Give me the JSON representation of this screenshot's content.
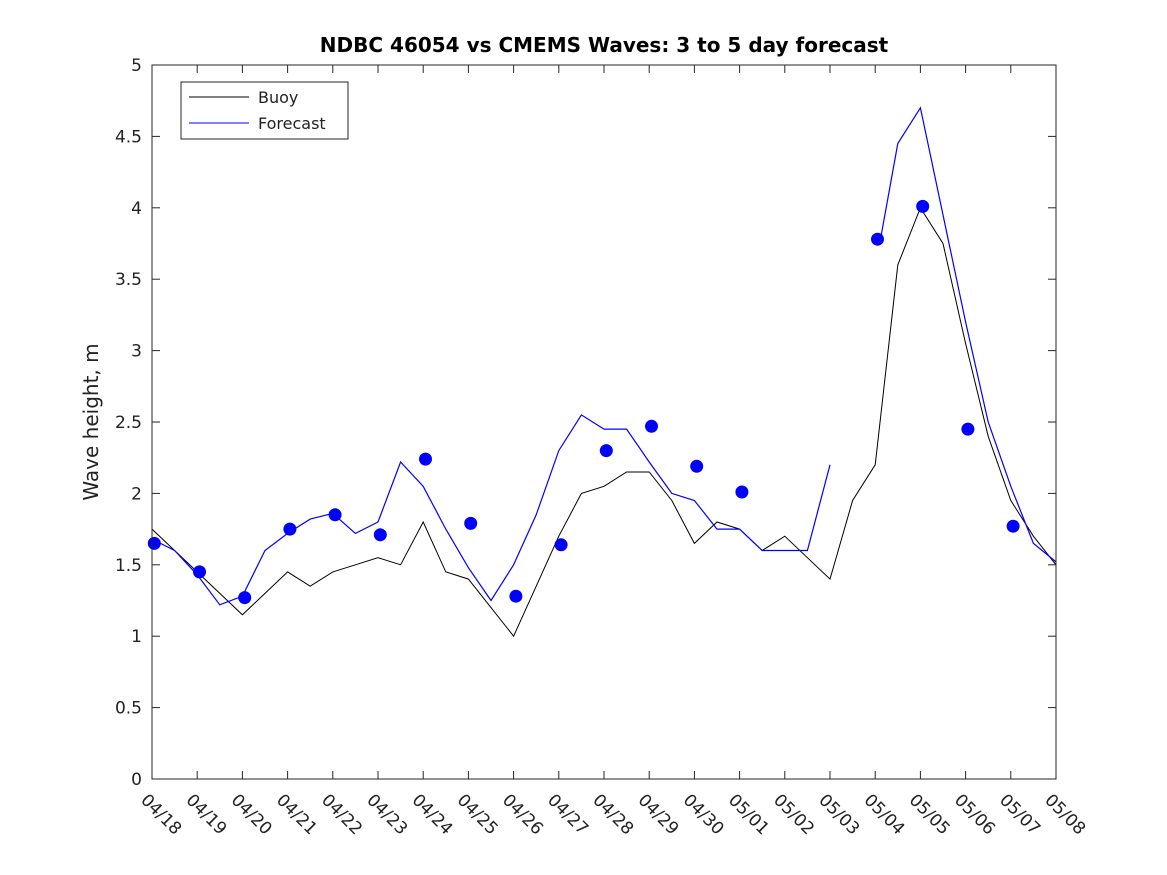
{
  "chart_data": {
    "type": "line",
    "title": "NDBC 46054 vs CMEMS Waves: 3 to 5 day forecast",
    "xlabel": "",
    "ylabel": "Wave height, m",
    "xlim": [
      "04/18",
      "05/08"
    ],
    "ylim": [
      0,
      5
    ],
    "x_tick_labels": [
      "04/18",
      "04/19",
      "04/20",
      "04/21",
      "04/22",
      "04/23",
      "04/24",
      "04/25",
      "04/26",
      "04/27",
      "04/28",
      "04/29",
      "04/30",
      "05/01",
      "05/02",
      "05/03",
      "05/04",
      "05/05",
      "05/06",
      "05/07",
      "05/08"
    ],
    "y_ticks": [
      0,
      0.5,
      1,
      1.5,
      2,
      2.5,
      3,
      3.5,
      4,
      4.5,
      5
    ],
    "y_tick_labels": [
      "0",
      "0.5",
      "1",
      "1.5",
      "2",
      "2.5",
      "3",
      "3.5",
      "4",
      "4.5",
      "5"
    ],
    "grid": false,
    "legend": {
      "placement": "top-left",
      "entries": [
        "Buoy",
        "Forecast"
      ]
    },
    "colors": {
      "buoy": "#000000",
      "forecast": "#0000ff"
    },
    "series": [
      {
        "name": "Buoy",
        "x": [
          0.0,
          0.5,
          1.0,
          1.5,
          2.0,
          2.5,
          3.0,
          3.5,
          4.0,
          4.5,
          5.0,
          5.5,
          6.0,
          6.5,
          7.0,
          7.5,
          8.0,
          8.5,
          9.0,
          9.5,
          10.0,
          10.5,
          11.0,
          11.5,
          12.0,
          12.5,
          13.0,
          13.5,
          14.0,
          14.5,
          15.0,
          15.5,
          16.0,
          16.5,
          17.0,
          17.5,
          18.0,
          18.5,
          19.0,
          19.5,
          20.0
        ],
        "y": [
          1.75,
          1.6,
          1.45,
          1.3,
          1.15,
          1.3,
          1.45,
          1.35,
          1.45,
          1.5,
          1.55,
          1.5,
          1.8,
          1.45,
          1.4,
          1.2,
          1.0,
          1.35,
          1.7,
          2.0,
          2.05,
          2.15,
          2.15,
          1.95,
          1.65,
          1.8,
          1.75,
          1.6,
          1.7,
          1.55,
          1.4,
          1.95,
          2.2,
          3.6,
          4.0,
          3.75,
          3.05,
          2.4,
          1.95,
          1.7,
          1.5
        ]
      },
      {
        "name": "",
        "x": [
          0.0,
          0.5,
          1.0,
          1.5,
          2.0,
          2.5,
          3.0,
          3.5,
          4.0,
          4.5,
          5.0,
          5.5,
          6.0,
          6.5,
          7.0,
          7.5,
          8.0,
          8.5,
          9.0,
          9.5,
          10.0,
          10.5,
          11.0,
          11.5,
          12.0,
          12.5,
          13.0,
          13.5,
          14.0,
          14.5,
          15.0
        ],
        "y": [
          1.68,
          1.6,
          1.43,
          1.22,
          1.28,
          1.6,
          1.72,
          1.82,
          1.86,
          1.72,
          1.8,
          2.22,
          2.05,
          1.75,
          1.48,
          1.25,
          1.5,
          1.85,
          2.3,
          2.55,
          2.45,
          2.45,
          2.22,
          2.0,
          1.95,
          1.75,
          1.75,
          1.6,
          1.6,
          1.6,
          2.2
        ]
      },
      {
        "name": "Forecast",
        "x": [
          16.1,
          16.5,
          17.0,
          17.5,
          18.0,
          18.5,
          19.0,
          19.5,
          20.0
        ],
        "y": [
          3.75,
          4.45,
          4.7,
          3.95,
          3.2,
          2.5,
          2.05,
          1.65,
          1.52
        ]
      },
      {
        "name": "",
        "x": [
          0.05,
          1.05,
          2.05,
          3.05,
          4.05,
          5.05,
          6.05,
          7.05,
          8.05,
          9.05,
          10.05,
          11.05,
          12.05,
          13.05,
          16.05,
          17.05,
          18.05,
          19.05
        ],
        "y": [
          1.65,
          1.45,
          1.27,
          1.75,
          1.85,
          1.71,
          2.24,
          1.79,
          1.28,
          1.64,
          2.3,
          2.47,
          2.19,
          2.01,
          3.78,
          4.01,
          2.45,
          1.77
        ]
      }
    ]
  }
}
